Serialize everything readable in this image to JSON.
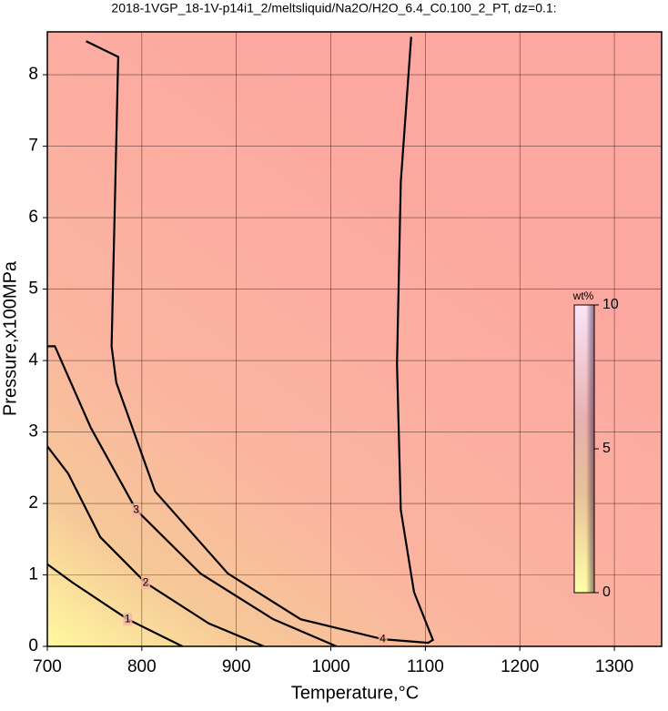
{
  "chart_data": {
    "type": "contour",
    "title": "2018-1VGP_18-1V-p14i1_2/meltsliquid/Na2O/H2O_6.4_C0.100_2_PT, dz=0.1:",
    "x_label": "Temperature,°C",
    "y_label": "Pressure,x100MPa",
    "xlim": [
      700,
      1350
    ],
    "ylim": [
      0,
      8.6
    ],
    "xticks": [
      700,
      800,
      900,
      1000,
      1100,
      1200,
      1300
    ],
    "yticks": [
      0,
      1,
      2,
      3,
      4,
      5,
      6,
      7,
      8
    ],
    "grid": true,
    "series": [
      {
        "name": "4",
        "color": "#000000",
        "x": [
          741,
          775,
          768,
          773,
          814,
          891,
          968,
          1055,
          1103,
          1108,
          1088,
          1074,
          1070,
          1074,
          1085
        ],
        "values": [
          8.47,
          8.25,
          4.2,
          3.69,
          2.17,
          1.02,
          0.38,
          0.1,
          0.05,
          0.09,
          0.76,
          1.91,
          3.95,
          6.5,
          8.53
        ]
      },
      {
        "name": "3",
        "color": "#000000",
        "x": [
          700,
          708,
          746,
          794,
          862,
          939,
          1006
        ],
        "values": [
          4.2,
          4.2,
          3.06,
          1.91,
          1.02,
          0.38,
          0
        ]
      },
      {
        "name": "2",
        "color": "#000000",
        "x": [
          700,
          722,
          756,
          804,
          871,
          929
        ],
        "values": [
          2.8,
          2.42,
          1.53,
          0.89,
          0.32,
          0
        ]
      },
      {
        "name": "1",
        "color": "#000000",
        "x": [
          700,
          727,
          785,
          843
        ],
        "values": [
          1.15,
          0.89,
          0.38,
          0
        ]
      }
    ],
    "colorbar": {
      "label": "wt%",
      "lim": [
        0,
        10
      ],
      "ticks": [
        0,
        5,
        10
      ]
    }
  }
}
